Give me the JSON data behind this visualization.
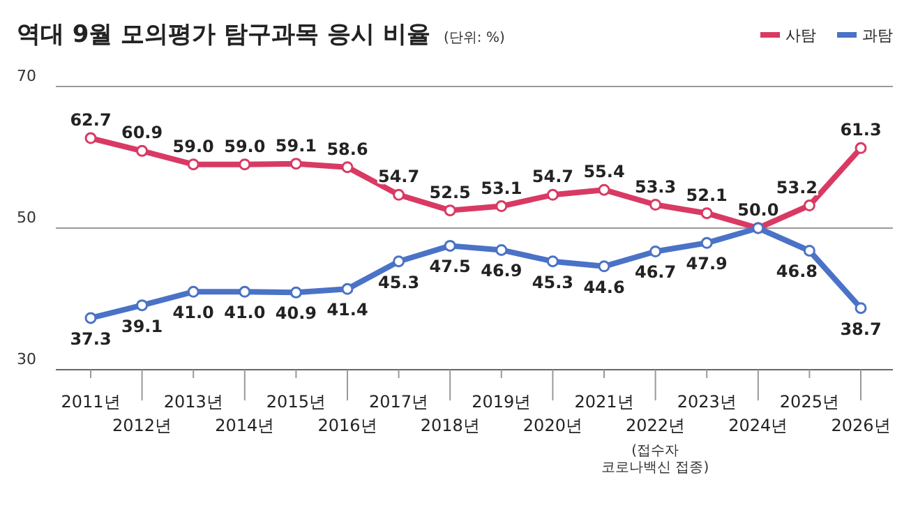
{
  "chart_data": {
    "type": "line",
    "title": "역대 9월 모의평가 탐구과목 응시 비율",
    "subtitle": "(단위: %)",
    "categories": [
      "2011년",
      "2012년",
      "2013년",
      "2014년",
      "2015년",
      "2016년",
      "2017년",
      "2018년",
      "2019년",
      "2020년",
      "2021년",
      "2022년",
      "2023년",
      "2024년",
      "2025년",
      "2026년"
    ],
    "series": [
      {
        "name": "사탐",
        "color": "#d83a63",
        "values": [
          62.7,
          60.9,
          59.0,
          59.0,
          59.1,
          58.6,
          54.7,
          52.5,
          53.1,
          54.7,
          55.4,
          53.3,
          52.1,
          50.0,
          53.2,
          61.3
        ],
        "value_labels": [
          "62.7",
          "60.9",
          "59.0",
          "59.0",
          "59.1",
          "58.6",
          "54.7",
          "52.5",
          "53.1",
          "54.7",
          "55.4",
          "53.3",
          "52.1",
          "50.0",
          "53.2",
          "61.3"
        ]
      },
      {
        "name": "과탐",
        "color": "#4a72c6",
        "values": [
          37.3,
          39.1,
          41.0,
          41.0,
          40.9,
          41.4,
          45.3,
          47.5,
          46.9,
          45.3,
          44.6,
          46.7,
          47.9,
          50.0,
          46.8,
          38.7
        ],
        "value_labels": [
          "37.3",
          "39.1",
          "41.0",
          "41.0",
          "40.9",
          "41.4",
          "45.3",
          "47.5",
          "46.9",
          "45.3",
          "44.6",
          "46.7",
          "47.9",
          null,
          "46.8",
          "38.7"
        ]
      }
    ],
    "ylim": [
      30,
      70
    ],
    "yticks": [
      30,
      50,
      70
    ],
    "grid": "y",
    "legend": "top right",
    "marker": "circle",
    "line_style": "solid",
    "annotations": [
      "(접수자 코로나백신 접종)"
    ]
  }
}
